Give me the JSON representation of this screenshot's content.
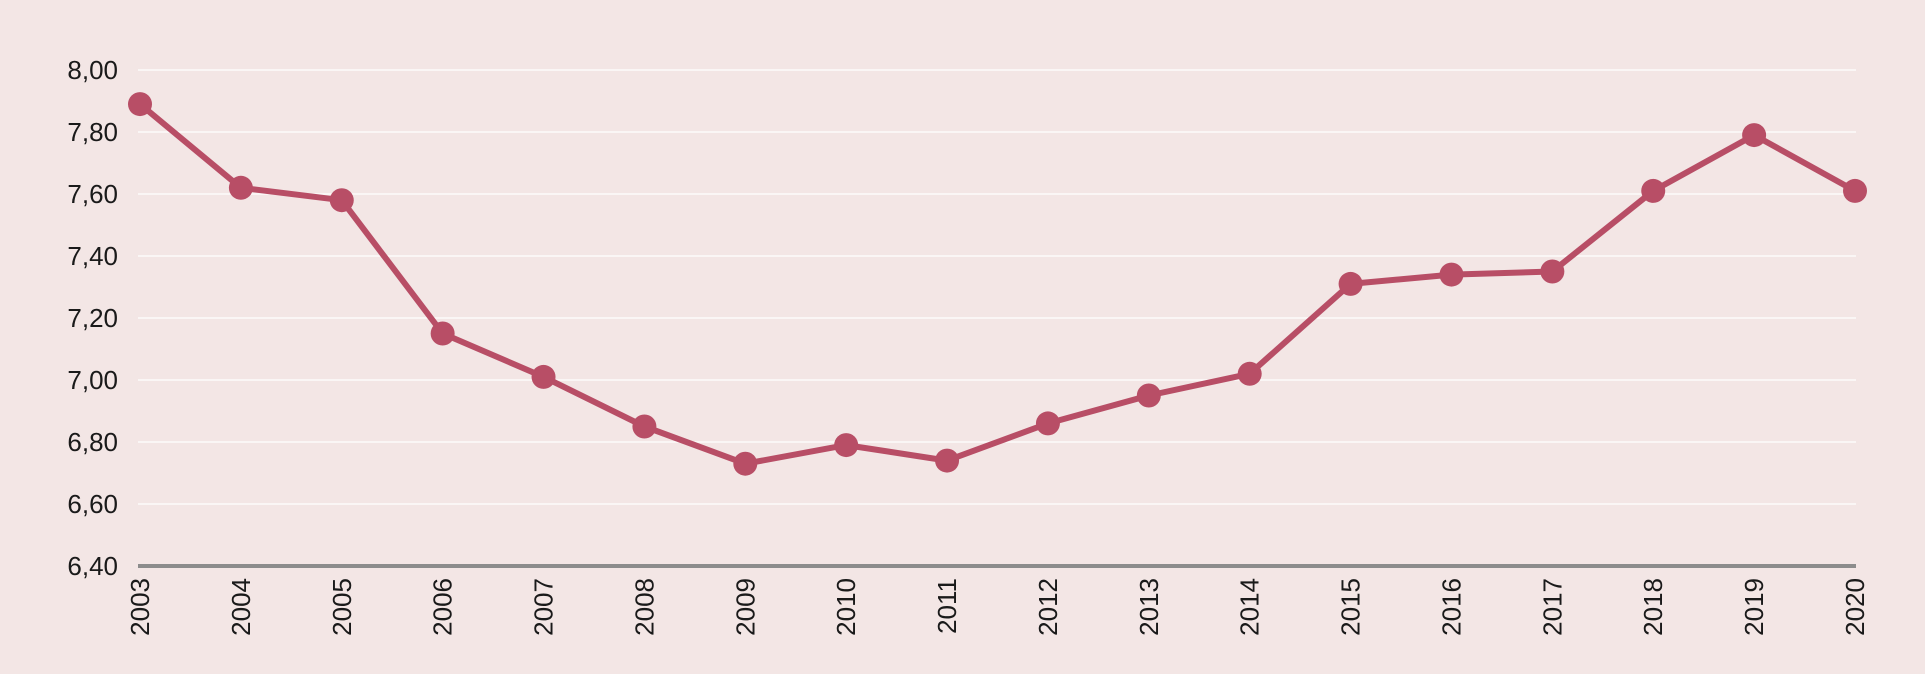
{
  "colors": {
    "background": "#f3e6e5",
    "gridline": "#ffffff",
    "baseline": "#8c8c8c",
    "series": "#b84e66",
    "text": "#1a1a1a"
  },
  "chart_data": {
    "type": "line",
    "title": "",
    "xlabel": "",
    "ylabel": "",
    "x": [
      "2003",
      "2004",
      "2005",
      "2006",
      "2007",
      "2008",
      "2009",
      "2010",
      "2011",
      "2012",
      "2013",
      "2014",
      "2015",
      "2016",
      "2017",
      "2018",
      "2019",
      "2020"
    ],
    "series": [
      {
        "values": [
          7.89,
          7.62,
          7.58,
          7.15,
          7.01,
          6.85,
          6.73,
          6.79,
          6.74,
          6.86,
          6.95,
          7.02,
          7.31,
          7.34,
          7.35,
          7.61,
          7.79,
          7.61
        ]
      }
    ],
    "yticks": [
      "8,00",
      "7,80",
      "7,60",
      "7,40",
      "7,20",
      "7,00",
      "6,80",
      "6,60",
      "6,40"
    ],
    "ylim": [
      6.4,
      8.0
    ],
    "grid": true,
    "legend": "none",
    "x_tick_rotation": "vertical"
  }
}
